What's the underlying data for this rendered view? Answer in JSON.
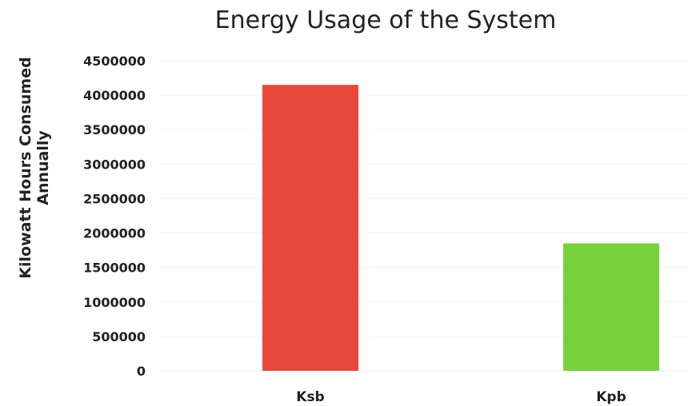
{
  "chart_data": {
    "type": "bar",
    "title": "Energy Usage of the System",
    "ylabel_lines": [
      "Kilowatt Hours Consumed",
      "Annually"
    ],
    "xlabel": "",
    "categories": [
      "Ksb",
      "Kpb"
    ],
    "values": [
      4150000,
      1850000
    ],
    "colors": [
      "#e8483c",
      "#77d13d"
    ],
    "ylim": [
      0,
      4500000
    ],
    "yticks": [
      0,
      500000,
      1000000,
      1500000,
      2000000,
      2500000,
      3000000,
      3500000,
      4000000,
      4500000
    ],
    "ytick_labels": [
      "0",
      "500000",
      "1000000",
      "1500000",
      "2000000",
      "2500000",
      "3000000",
      "3500000",
      "4000000",
      "4500000"
    ],
    "grid": true,
    "legend": "none"
  }
}
